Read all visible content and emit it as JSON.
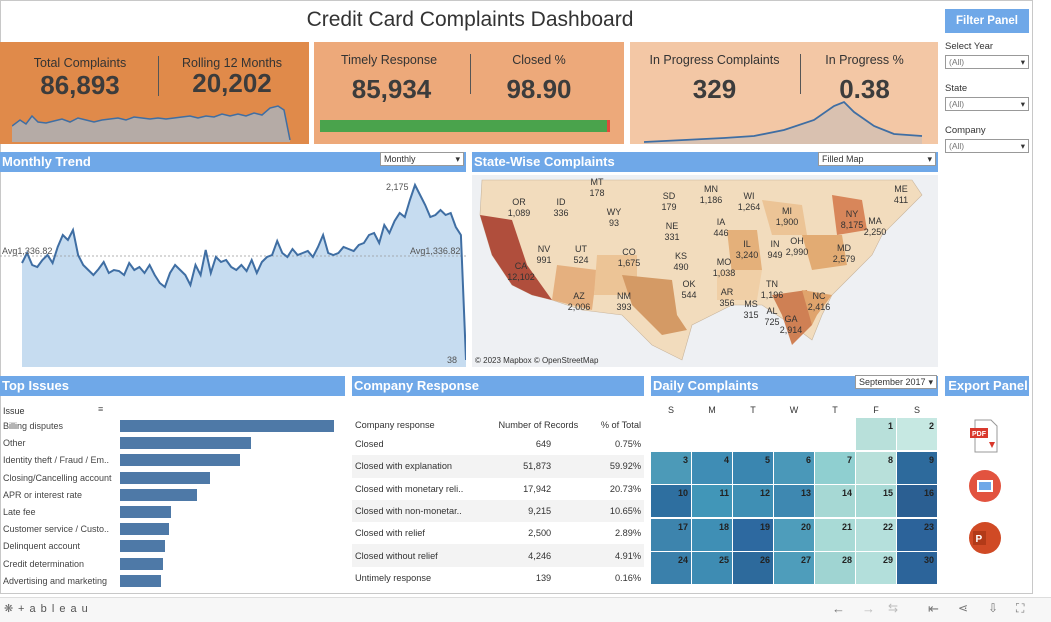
{
  "title": "Credit Card Complaints Dashboard",
  "kpis": {
    "total_complaints": {
      "label": "Total Complaints",
      "value": "86,893"
    },
    "rolling_12": {
      "label": "Rolling 12 Months",
      "value": "20,202"
    },
    "timely_response": {
      "label": "Timely Response",
      "value": "85,934"
    },
    "closed_pct": {
      "label": "Closed %",
      "value": "98.90"
    },
    "in_progress": {
      "label": "In Progress Complaints",
      "value": "329"
    },
    "in_progress_pct": {
      "label": "In Progress %",
      "value": "0.38"
    }
  },
  "filter_panel": {
    "button": "Filter Panel",
    "select_year": {
      "label": "Select Year",
      "value": "(All)"
    },
    "state": {
      "label": "State",
      "value": "(All)"
    },
    "company": {
      "label": "Company",
      "value": "(All)"
    }
  },
  "monthly_trend": {
    "title": "Monthly Trend",
    "dropdown": "Monthly",
    "avg_label_left": "Avg1,336.82",
    "avg_label_right": "Avg1,336.82",
    "max_label": "2,175",
    "min_label": "38"
  },
  "state_map": {
    "title": "State-Wise Complaints",
    "dropdown": "Filled Map",
    "attribution": "© 2023 Mapbox  © OpenStreetMap",
    "states": [
      {
        "code": "OR",
        "value": "1,089"
      },
      {
        "code": "ID",
        "value": "336"
      },
      {
        "code": "WY",
        "value": "93"
      },
      {
        "code": "SD",
        "value": "179"
      },
      {
        "code": "NE",
        "value": "331"
      },
      {
        "code": "CA",
        "value": "12,102"
      },
      {
        "code": "NV",
        "value": "991"
      },
      {
        "code": "UT",
        "value": "524"
      },
      {
        "code": "CO",
        "value": "1,675"
      },
      {
        "code": "KS",
        "value": "490"
      },
      {
        "code": "AZ",
        "value": "2,006"
      },
      {
        "code": "NM",
        "value": "393"
      },
      {
        "code": "OK",
        "value": "544"
      },
      {
        "code": "WI",
        "value": "1,264"
      },
      {
        "code": "MI",
        "value": "1,900"
      },
      {
        "code": "IA",
        "value": "446"
      },
      {
        "code": "IL",
        "value": "3,240"
      },
      {
        "code": "IN",
        "value": "949"
      },
      {
        "code": "OH",
        "value": "2,990"
      },
      {
        "code": "MO",
        "value": "1,038"
      },
      {
        "code": "AR",
        "value": "356"
      },
      {
        "code": "MS",
        "value": "315"
      },
      {
        "code": "AL",
        "value": "725"
      },
      {
        "code": "GA",
        "value": "2,914"
      },
      {
        "code": "TN",
        "value": "1,196"
      },
      {
        "code": "NC",
        "value": "2,416"
      },
      {
        "code": "MD",
        "value": "2,579"
      },
      {
        "code": "NY",
        "value": "8,175"
      },
      {
        "code": "MA",
        "value": "2,250"
      },
      {
        "code": "ME",
        "value": "411"
      },
      {
        "code": "MN",
        "value": "1,186"
      },
      {
        "code": "MT",
        "value": "178"
      }
    ]
  },
  "top_issues": {
    "title": "Top Issues",
    "column": "Issue",
    "items": [
      {
        "label": "Billing disputes",
        "value": 100
      },
      {
        "label": "Other",
        "value": 61
      },
      {
        "label": "Identity theft / Fraud / Em..",
        "value": 56
      },
      {
        "label": "Closing/Cancelling account",
        "value": 42
      },
      {
        "label": "APR or interest rate",
        "value": 36
      },
      {
        "label": "Late fee",
        "value": 24
      },
      {
        "label": "Customer service / Custo..",
        "value": 23
      },
      {
        "label": "Delinquent account",
        "value": 21
      },
      {
        "label": "Credit determination",
        "value": 20
      },
      {
        "label": "Advertising and marketing",
        "value": 19
      }
    ]
  },
  "company_response": {
    "title": "Company Response",
    "headers": [
      "Company response",
      "Number of Records",
      "% of Total"
    ],
    "rows": [
      [
        "Closed",
        "649",
        "0.75%"
      ],
      [
        "Closed with explanation",
        "51,873",
        "59.92%"
      ],
      [
        "Closed with monetary reli..",
        "17,942",
        "20.73%"
      ],
      [
        "Closed with non-monetar..",
        "9,215",
        "10.65%"
      ],
      [
        "Closed with relief",
        "2,500",
        "2.89%"
      ],
      [
        "Closed without relief",
        "4,246",
        "4.91%"
      ],
      [
        "Untimely response",
        "139",
        "0.16%"
      ]
    ]
  },
  "daily_complaints": {
    "title": "Daily Complaints",
    "dropdown": "September 2017",
    "days": [
      "S",
      "M",
      "T",
      "W",
      "T",
      "F",
      "S"
    ]
  },
  "export_panel": {
    "title": "Export Panel"
  },
  "footer": {
    "brand": "+ a b l e a u"
  },
  "colors": {
    "header_blue": "#6fa8e8",
    "kpi1": "#e08a4a",
    "kpi2": "#eda97a",
    "kpi3": "#f3c7a5",
    "bar": "#4e79a7"
  }
}
